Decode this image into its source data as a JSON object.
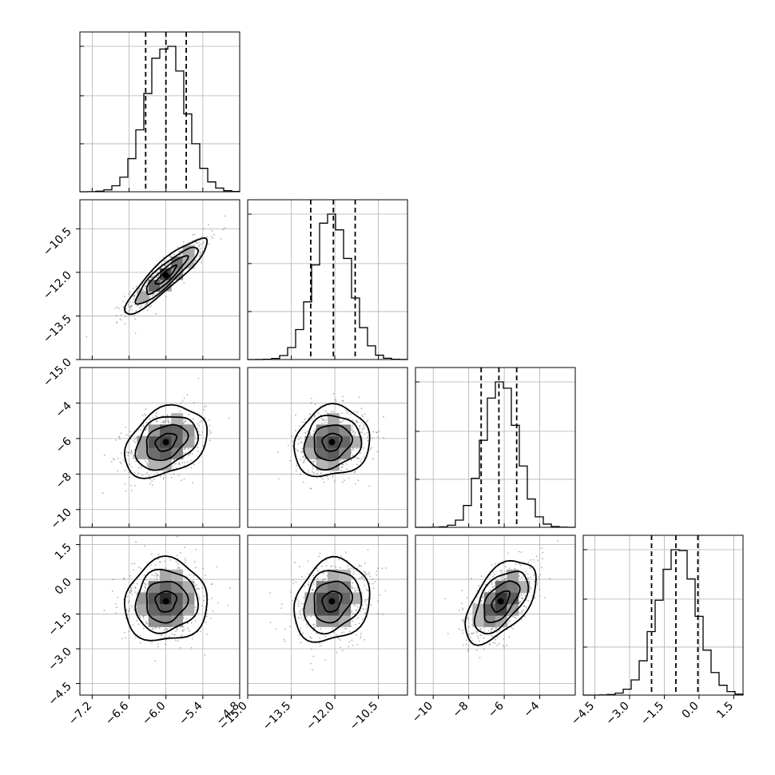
{
  "chart_data": {
    "type": "corner",
    "parameters": [
      {
        "center": -6.0,
        "sigma": 0.32,
        "range": [
          -7.4,
          -4.8
        ],
        "ticks": [
          -7.2,
          -6.6,
          -6.0,
          -5.4,
          -4.8
        ],
        "tick_labels": [
          "−7.2",
          "−6.6",
          "−6.0",
          "−5.4",
          "−4.8"
        ],
        "quantiles": [
          -6.33,
          -6.0,
          -5.67
        ]
      },
      {
        "center": -12.1,
        "sigma": 0.62,
        "range": [
          -15.0,
          -9.5
        ],
        "ticks": [
          -15.0,
          -13.5,
          -12.0,
          -10.5
        ],
        "tick_labels": [
          "−15.0",
          "−13.5",
          "−12.0",
          "−10.5"
        ],
        "quantiles": [
          -12.83,
          -12.05,
          -11.3
        ]
      },
      {
        "center": -6.2,
        "sigma": 0.95,
        "range": [
          -11.0,
          -2.0
        ],
        "ticks": [
          -10,
          -8,
          -6,
          -4
        ],
        "tick_labels": [
          "−10",
          "−8",
          "−6",
          "−4"
        ],
        "quantiles": [
          -7.3,
          -6.3,
          -5.3
        ]
      },
      {
        "center": -0.95,
        "sigma": 0.85,
        "range": [
          -5.0,
          1.9
        ],
        "ticks": [
          -4.5,
          -3.0,
          -1.5,
          0.0,
          1.5
        ],
        "tick_labels": [
          "−4.5",
          "−3.0",
          "−1.5",
          "0.0",
          "1.5"
        ],
        "quantiles": [
          -2.05,
          -1.0,
          -0.05
        ]
      }
    ],
    "histogram_grid_levels": [
      0.33,
      0.66,
      1.0
    ],
    "correlations": [
      {
        "row": 1,
        "col": 0,
        "rho": 0.9
      },
      {
        "row": 2,
        "col": 0,
        "rho": 0.32
      },
      {
        "row": 2,
        "col": 1,
        "rho": 0.12
      },
      {
        "row": 3,
        "col": 0,
        "rho": 0.05
      },
      {
        "row": 3,
        "col": 1,
        "rho": 0.18
      },
      {
        "row": 3,
        "col": 2,
        "rho": 0.55
      }
    ],
    "contour_levels_sigma": [
      0.5,
      1.0,
      1.5,
      2.0
    ],
    "grid": true
  }
}
